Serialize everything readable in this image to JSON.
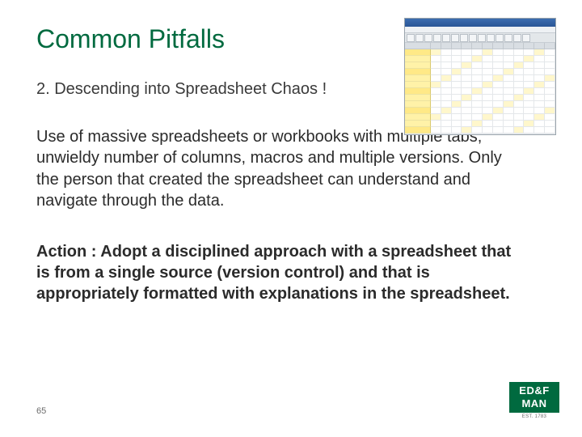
{
  "title": "Common Pitfalls",
  "subtitle": "2.  Descending into Spreadsheet Chaos !",
  "body": "Use of massive spreadsheets or workbooks with multiple tabs, unwieldy number of columns, macros and multiple versions. Only the person that created the spreadsheet can understand and navigate through the data.",
  "action": "Action :   Adopt a disciplined approach with a spreadsheet that is from a single source (version control) and that is appropriately formatted with explanations in the spreadsheet.",
  "page_number": "65",
  "colors": {
    "title": "#006a3f",
    "text": "#2b2b2b",
    "logo_bg": "#006a3f",
    "logo_fg": "#ffffff"
  },
  "logo": {
    "line1": "ED&F",
    "line2": "MAN",
    "sub": "EST. 1783"
  },
  "thumbnail": {
    "type": "spreadsheet",
    "cols": 12,
    "rows": 13,
    "row_label_colors": [
      "#fff2a8",
      "#ffe987"
    ],
    "cell_bg": "#ffffff",
    "cell_highlight": "#fff7cc",
    "header_bg": "#d9dee3",
    "toolbar_btn_count": 14
  }
}
